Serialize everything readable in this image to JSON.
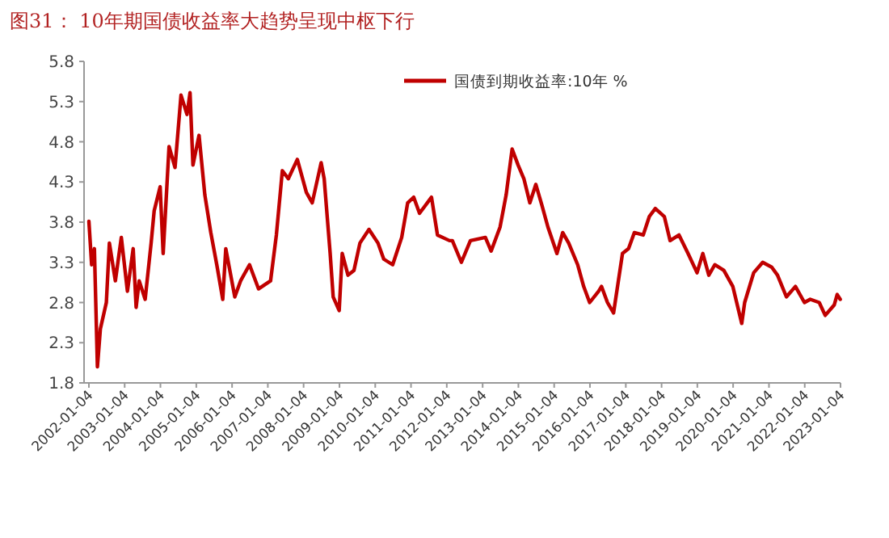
{
  "chart_data": {
    "type": "line",
    "title": "图31：  10年期国债收益率大趋势呈现中枢下行",
    "x": [
      "2002-01-04",
      "2002-02",
      "2002-03",
      "2002-04",
      "2002-05",
      "2002-07",
      "2002-08",
      "2002-10",
      "2002-12",
      "2003-02",
      "2003-04",
      "2003-05",
      "2003-06",
      "2003-08",
      "2003-10",
      "2003-11",
      "2004-01",
      "2004-02",
      "2004-04",
      "2004-06",
      "2004-08",
      "2004-10",
      "2004-11",
      "2004-12",
      "2005-02",
      "2005-04",
      "2005-06",
      "2005-08",
      "2005-10",
      "2005-11",
      "2006-02",
      "2006-04",
      "2006-07",
      "2006-10",
      "2007-02",
      "2007-04",
      "2007-06",
      "2007-08",
      "2007-11",
      "2008-02",
      "2008-04",
      "2008-07",
      "2008-08",
      "2008-10",
      "2008-11",
      "2009-01",
      "2009-02",
      "2009-04",
      "2009-06",
      "2009-08",
      "2009-11",
      "2010-02",
      "2010-04",
      "2010-07",
      "2010-10",
      "2010-12",
      "2011-02",
      "2011-04",
      "2011-08",
      "2011-10",
      "2012-02",
      "2012-03",
      "2012-06",
      "2012-09",
      "2013-02",
      "2013-04",
      "2013-07",
      "2013-09",
      "2013-11",
      "2014-01",
      "2014-03",
      "2014-05",
      "2014-07",
      "2014-09",
      "2014-11",
      "2015-02",
      "2015-04",
      "2015-06",
      "2015-09",
      "2015-11",
      "2016-01",
      "2016-04",
      "2016-05",
      "2016-07",
      "2016-09",
      "2016-12",
      "2017-02",
      "2017-04",
      "2017-07",
      "2017-09",
      "2017-11",
      "2018-02",
      "2018-04",
      "2018-07",
      "2018-10",
      "2019-01",
      "2019-03",
      "2019-05",
      "2019-07",
      "2019-10",
      "2020-01",
      "2020-04",
      "2020-05",
      "2020-08",
      "2020-11",
      "2021-02",
      "2021-04",
      "2021-07",
      "2021-10",
      "2022-01",
      "2022-03",
      "2022-06",
      "2022-08",
      "2022-11",
      "2022-12",
      "2023-01"
    ],
    "series": [
      {
        "name": "国债到期收益率:10年 %",
        "color": "#c00000",
        "values": [
          3.81,
          3.27,
          3.47,
          2.0,
          2.47,
          2.8,
          3.54,
          3.07,
          3.61,
          2.94,
          3.47,
          2.74,
          3.07,
          2.84,
          3.54,
          3.94,
          4.24,
          3.41,
          4.74,
          4.48,
          5.38,
          5.14,
          5.41,
          4.51,
          4.88,
          4.14,
          3.67,
          3.27,
          2.84,
          3.47,
          2.87,
          3.07,
          3.27,
          2.97,
          3.07,
          3.64,
          4.44,
          4.34,
          4.58,
          4.17,
          4.04,
          4.54,
          4.34,
          3.41,
          2.87,
          2.7,
          3.41,
          3.14,
          3.2,
          3.54,
          3.71,
          3.54,
          3.34,
          3.27,
          3.61,
          4.04,
          4.11,
          3.91,
          4.11,
          3.64,
          3.57,
          3.57,
          3.3,
          3.57,
          3.61,
          3.44,
          3.74,
          4.14,
          4.71,
          4.51,
          4.34,
          4.04,
          4.27,
          4.01,
          3.74,
          3.41,
          3.67,
          3.54,
          3.27,
          3.0,
          2.8,
          2.94,
          3.0,
          2.8,
          2.67,
          3.41,
          3.47,
          3.67,
          3.64,
          3.87,
          3.97,
          3.87,
          3.57,
          3.64,
          3.41,
          3.17,
          3.41,
          3.14,
          3.27,
          3.2,
          3.0,
          2.54,
          2.8,
          3.17,
          3.3,
          3.24,
          3.14,
          2.87,
          3.0,
          2.8,
          2.84,
          2.8,
          2.64,
          2.77,
          2.9,
          2.84
        ]
      }
    ],
    "xlim": [
      "2002-01-04",
      "2023-01-04"
    ],
    "xticks": [
      "2002-01-04",
      "2003-01-04",
      "2004-01-04",
      "2005-01-04",
      "2006-01-04",
      "2007-01-04",
      "2008-01-04",
      "2009-01-04",
      "2010-01-04",
      "2011-01-04",
      "2012-01-04",
      "2013-01-04",
      "2014-01-04",
      "2015-01-04",
      "2016-01-04",
      "2017-01-04",
      "2018-01-04",
      "2019-01-04",
      "2020-01-04",
      "2021-01-04",
      "2022-01-04",
      "2023-01-04"
    ],
    "ylim": [
      1.8,
      5.8
    ],
    "yticks": [
      {
        "value": 1.8,
        "label": "1.8"
      },
      {
        "value": 2.3,
        "label": "2.3"
      },
      {
        "value": 2.8,
        "label": "2.8"
      },
      {
        "value": 3.3,
        "label": "3.3"
      },
      {
        "value": 3.8,
        "label": "3.8"
      },
      {
        "value": 4.3,
        "label": "4.3"
      },
      {
        "value": 4.8,
        "label": "4.8"
      },
      {
        "value": 5.3,
        "label": "5.3"
      },
      {
        "value": 5.8,
        "label": "5.8"
      }
    ],
    "legend": "top right",
    "grid": false,
    "marker": "none",
    "line_style": "solid"
  }
}
